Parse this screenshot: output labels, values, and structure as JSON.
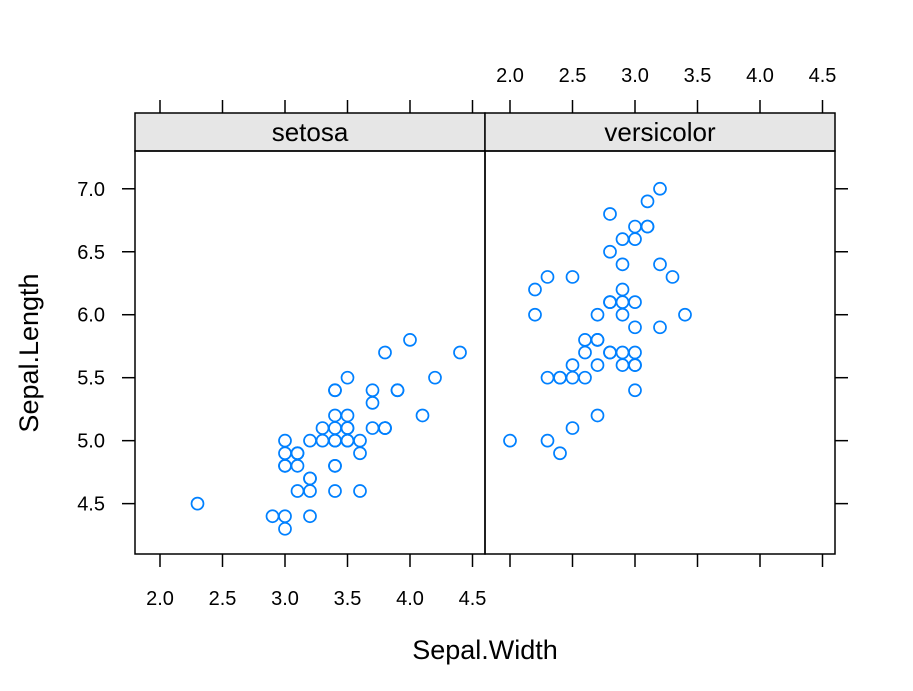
{
  "chart_data": {
    "type": "scatter",
    "xlabel": "Sepal.Width",
    "ylabel": "Sepal.Length",
    "xlim": [
      1.8,
      4.6
    ],
    "ylim": [
      4.1,
      7.3
    ],
    "x_ticks": [
      2.0,
      2.5,
      3.0,
      3.5,
      4.0,
      4.5
    ],
    "x_tick_labels": [
      "2.0",
      "2.5",
      "3.0",
      "3.5",
      "4.0",
      "4.5"
    ],
    "y_ticks": [
      4.5,
      5.0,
      5.5,
      6.0,
      6.5,
      7.0
    ],
    "y_tick_labels": [
      "4.5",
      "5.0",
      "5.5",
      "6.0",
      "6.5",
      "7.0"
    ],
    "marker_color": "#0080ff",
    "strip_color": "#e6e6e6",
    "grid": false,
    "panels": [
      {
        "name": "setosa",
        "points": [
          {
            "x": 3.5,
            "y": 5.1
          },
          {
            "x": 3.0,
            "y": 4.9
          },
          {
            "x": 3.2,
            "y": 4.7
          },
          {
            "x": 3.1,
            "y": 4.6
          },
          {
            "x": 3.6,
            "y": 5.0
          },
          {
            "x": 3.9,
            "y": 5.4
          },
          {
            "x": 3.4,
            "y": 4.6
          },
          {
            "x": 3.4,
            "y": 5.0
          },
          {
            "x": 2.9,
            "y": 4.4
          },
          {
            "x": 3.1,
            "y": 4.9
          },
          {
            "x": 3.7,
            "y": 5.4
          },
          {
            "x": 3.4,
            "y": 4.8
          },
          {
            "x": 3.0,
            "y": 4.8
          },
          {
            "x": 3.0,
            "y": 4.3
          },
          {
            "x": 4.0,
            "y": 5.8
          },
          {
            "x": 4.4,
            "y": 5.7
          },
          {
            "x": 3.9,
            "y": 5.4
          },
          {
            "x": 3.5,
            "y": 5.1
          },
          {
            "x": 3.8,
            "y": 5.7
          },
          {
            "x": 3.8,
            "y": 5.1
          },
          {
            "x": 3.4,
            "y": 5.4
          },
          {
            "x": 3.7,
            "y": 5.1
          },
          {
            "x": 3.6,
            "y": 4.6
          },
          {
            "x": 3.3,
            "y": 5.1
          },
          {
            "x": 3.4,
            "y": 4.8
          },
          {
            "x": 3.0,
            "y": 5.0
          },
          {
            "x": 3.4,
            "y": 5.0
          },
          {
            "x": 3.5,
            "y": 5.2
          },
          {
            "x": 3.4,
            "y": 5.2
          },
          {
            "x": 3.2,
            "y": 4.7
          },
          {
            "x": 3.1,
            "y": 4.8
          },
          {
            "x": 3.4,
            "y": 5.4
          },
          {
            "x": 4.1,
            "y": 5.2
          },
          {
            "x": 4.2,
            "y": 5.5
          },
          {
            "x": 3.1,
            "y": 4.9
          },
          {
            "x": 3.2,
            "y": 5.0
          },
          {
            "x": 3.5,
            "y": 5.5
          },
          {
            "x": 3.6,
            "y": 4.9
          },
          {
            "x": 3.0,
            "y": 4.4
          },
          {
            "x": 3.4,
            "y": 5.1
          },
          {
            "x": 3.5,
            "y": 5.0
          },
          {
            "x": 2.3,
            "y": 4.5
          },
          {
            "x": 3.2,
            "y": 4.4
          },
          {
            "x": 3.5,
            "y": 5.0
          },
          {
            "x": 3.8,
            "y": 5.1
          },
          {
            "x": 3.0,
            "y": 4.8
          },
          {
            "x": 3.8,
            "y": 5.1
          },
          {
            "x": 3.2,
            "y": 4.6
          },
          {
            "x": 3.7,
            "y": 5.3
          },
          {
            "x": 3.3,
            "y": 5.0
          }
        ]
      },
      {
        "name": "versicolor",
        "points": [
          {
            "x": 3.2,
            "y": 7.0
          },
          {
            "x": 3.2,
            "y": 6.4
          },
          {
            "x": 3.1,
            "y": 6.9
          },
          {
            "x": 2.3,
            "y": 5.5
          },
          {
            "x": 2.8,
            "y": 6.5
          },
          {
            "x": 2.8,
            "y": 5.7
          },
          {
            "x": 3.3,
            "y": 6.3
          },
          {
            "x": 2.4,
            "y": 4.9
          },
          {
            "x": 2.9,
            "y": 6.6
          },
          {
            "x": 2.7,
            "y": 5.2
          },
          {
            "x": 2.0,
            "y": 5.0
          },
          {
            "x": 3.0,
            "y": 5.9
          },
          {
            "x": 2.2,
            "y": 6.0
          },
          {
            "x": 2.9,
            "y": 6.1
          },
          {
            "x": 2.9,
            "y": 5.6
          },
          {
            "x": 3.1,
            "y": 6.7
          },
          {
            "x": 3.0,
            "y": 5.6
          },
          {
            "x": 2.7,
            "y": 5.8
          },
          {
            "x": 2.2,
            "y": 6.2
          },
          {
            "x": 2.5,
            "y": 5.6
          },
          {
            "x": 3.2,
            "y": 5.9
          },
          {
            "x": 2.8,
            "y": 6.1
          },
          {
            "x": 2.5,
            "y": 6.3
          },
          {
            "x": 2.8,
            "y": 6.1
          },
          {
            "x": 2.9,
            "y": 6.4
          },
          {
            "x": 3.0,
            "y": 6.6
          },
          {
            "x": 2.8,
            "y": 6.8
          },
          {
            "x": 3.0,
            "y": 6.7
          },
          {
            "x": 2.9,
            "y": 6.0
          },
          {
            "x": 2.6,
            "y": 5.7
          },
          {
            "x": 2.4,
            "y": 5.5
          },
          {
            "x": 2.4,
            "y": 5.5
          },
          {
            "x": 2.7,
            "y": 5.8
          },
          {
            "x": 2.7,
            "y": 6.0
          },
          {
            "x": 3.0,
            "y": 5.4
          },
          {
            "x": 3.4,
            "y": 6.0
          },
          {
            "x": 3.1,
            "y": 6.7
          },
          {
            "x": 2.3,
            "y": 6.3
          },
          {
            "x": 3.0,
            "y": 5.6
          },
          {
            "x": 2.5,
            "y": 5.5
          },
          {
            "x": 2.6,
            "y": 5.5
          },
          {
            "x": 3.0,
            "y": 6.1
          },
          {
            "x": 2.6,
            "y": 5.8
          },
          {
            "x": 2.3,
            "y": 5.0
          },
          {
            "x": 2.7,
            "y": 5.6
          },
          {
            "x": 3.0,
            "y": 5.7
          },
          {
            "x": 2.9,
            "y": 5.7
          },
          {
            "x": 2.9,
            "y": 6.2
          },
          {
            "x": 2.5,
            "y": 5.1
          },
          {
            "x": 2.8,
            "y": 5.7
          }
        ]
      }
    ]
  }
}
